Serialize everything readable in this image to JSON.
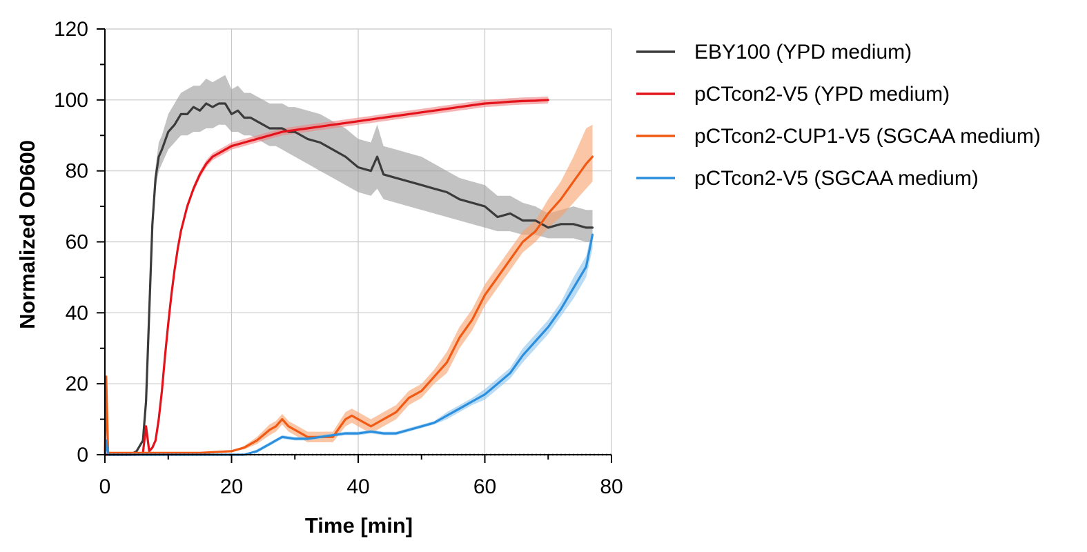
{
  "chart_data": {
    "type": "line",
    "title": "",
    "xlabel": "Time [min]",
    "ylabel": "Normalized OD600",
    "xlim": [
      0,
      80
    ],
    "ylim": [
      0,
      120
    ],
    "x_ticks": [
      "0",
      "20",
      "40",
      "60",
      "80"
    ],
    "y_ticks": [
      "0",
      "20",
      "40",
      "60",
      "80",
      "100",
      "120"
    ],
    "grid": true,
    "legend_position": "right",
    "series": [
      {
        "name": "EBY100 (YPD medium)",
        "color": "#3b3b3b",
        "band_color": "#9a9a9a",
        "x": [
          0,
          4,
          5,
          6,
          6.5,
          7,
          7.5,
          8,
          8.5,
          9,
          10,
          11,
          12,
          13,
          14,
          15,
          16,
          17,
          18,
          19,
          20,
          21,
          22,
          23,
          24,
          25,
          26,
          27,
          28,
          29,
          30,
          32,
          34,
          36,
          38,
          40,
          42,
          43,
          44,
          46,
          48,
          50,
          52,
          54,
          56,
          58,
          60,
          62,
          64,
          66,
          68,
          70,
          72,
          74,
          76,
          77
        ],
        "y": [
          0,
          0,
          1,
          4,
          15,
          40,
          65,
          78,
          84,
          86,
          91,
          93,
          96,
          96,
          98,
          97,
          99,
          98,
          99,
          99,
          96,
          97,
          95,
          95,
          94,
          93,
          92,
          92,
          92,
          91,
          91,
          89,
          88,
          86,
          84,
          81,
          80,
          84,
          79,
          78,
          77,
          76,
          75,
          74,
          72,
          71,
          70,
          67,
          68,
          66,
          66,
          64,
          65,
          65,
          64,
          64
        ],
        "lower": [
          0,
          0,
          1,
          4,
          15,
          38,
          62,
          75,
          80,
          82,
          86,
          88,
          90,
          90,
          91,
          91,
          92,
          92,
          93,
          93,
          91,
          91,
          90,
          90,
          89,
          88,
          87,
          87,
          86,
          85,
          84,
          82,
          80,
          78,
          76,
          74,
          73,
          75,
          72,
          71,
          70,
          69,
          68,
          67,
          66,
          65,
          64,
          63,
          63,
          62,
          62,
          61,
          61,
          61,
          60,
          60
        ],
        "upper": [
          0,
          0,
          1,
          4,
          15,
          42,
          68,
          81,
          88,
          90,
          96,
          99,
          102,
          103,
          104,
          104,
          106,
          105,
          106,
          107,
          103,
          104,
          102,
          102,
          101,
          100,
          99,
          99,
          99,
          98,
          98,
          97,
          96,
          94,
          92,
          89,
          88,
          93,
          87,
          86,
          85,
          84,
          82,
          80,
          78,
          77,
          76,
          73,
          73,
          71,
          70,
          68,
          69,
          70,
          69,
          69
        ]
      },
      {
        "name": "pCTcon2-V5 (YPD medium)",
        "color": "#e3121b",
        "band_color": "#f08080",
        "x": [
          0,
          5,
          6,
          6.5,
          7,
          7.5,
          8,
          8.5,
          9,
          9.5,
          10,
          10.5,
          11,
          11.5,
          12,
          13,
          14,
          15,
          16,
          17,
          18,
          19,
          20,
          22,
          24,
          26,
          28,
          30,
          32,
          34,
          36,
          38,
          40,
          42,
          44,
          46,
          48,
          50,
          52,
          54,
          56,
          58,
          60,
          62,
          64,
          66,
          68,
          70
        ],
        "y": [
          0,
          0,
          0.5,
          8,
          1,
          2,
          4,
          10,
          18,
          28,
          37,
          45,
          52,
          58,
          63,
          70,
          75,
          79,
          82,
          84,
          85,
          86,
          87,
          88,
          89,
          90,
          91,
          91.5,
          92,
          92.5,
          93,
          93.5,
          94,
          94.5,
          95,
          95.5,
          96,
          96.5,
          97,
          97.5,
          98,
          98.5,
          99,
          99.2,
          99.5,
          99.7,
          99.8,
          100
        ],
        "lower": [
          0,
          0,
          0.5,
          8,
          1,
          2,
          4,
          10,
          18,
          28,
          36,
          44,
          51,
          57,
          62,
          69,
          74,
          78,
          81,
          83,
          84,
          85,
          86,
          87,
          88,
          89,
          90,
          90.5,
          91,
          91.5,
          92,
          92.5,
          93,
          93.5,
          94,
          94.5,
          95,
          95.5,
          96,
          96.5,
          97,
          97.5,
          98,
          98.2,
          98.5,
          98.7,
          98.8,
          99
        ],
        "upper": [
          0,
          0,
          0.5,
          8,
          1,
          2,
          4,
          10,
          18,
          28,
          38,
          46,
          53,
          59,
          64,
          71,
          76,
          80,
          83,
          85,
          86,
          87,
          88,
          89,
          90,
          91,
          92,
          92.5,
          93,
          93.5,
          94,
          94.5,
          95,
          95.5,
          96,
          96.5,
          97,
          97.5,
          98,
          98.5,
          99,
          99.5,
          100,
          100.2,
          100.5,
          100.7,
          100.8,
          101
        ]
      },
      {
        "name": "pCTcon2-CUP1-V5 (SGCAA medium)",
        "color": "#f05a14",
        "band_color": "#f6a06a",
        "x": [
          0,
          0.2,
          0.5,
          5,
          10,
          15,
          20,
          22,
          24,
          26,
          27,
          28,
          29,
          30,
          32,
          34,
          36,
          38,
          39,
          40,
          42,
          44,
          46,
          48,
          50,
          52,
          54,
          56,
          58,
          60,
          62,
          64,
          66,
          68,
          70,
          72,
          74,
          76,
          77
        ],
        "y": [
          0,
          22,
          0.5,
          0.5,
          0.5,
          0.5,
          1,
          2,
          4,
          7,
          8,
          10,
          8,
          7,
          5,
          5,
          5,
          10,
          11,
          10,
          8,
          10,
          12,
          16,
          18,
          22,
          26,
          33,
          38,
          45,
          50,
          55,
          60,
          63,
          68,
          72,
          77,
          82,
          84
        ],
        "lower": [
          0,
          22,
          0.5,
          0.5,
          0.5,
          0.5,
          1,
          1.5,
          3,
          5.5,
          6.5,
          8.5,
          6.5,
          5.5,
          3.5,
          3.5,
          3.5,
          8,
          9,
          8,
          6,
          8,
          10,
          14,
          16,
          20,
          23,
          30,
          35,
          42,
          47,
          52,
          57,
          60,
          64,
          67,
          71,
          75,
          77
        ],
        "upper": [
          0,
          22,
          0.5,
          0.5,
          0.5,
          0.5,
          1,
          2.5,
          5,
          8.5,
          9.5,
          11.5,
          9.5,
          8.5,
          6.5,
          6.5,
          6.5,
          12,
          13,
          12,
          10,
          12,
          14,
          18,
          20,
          24,
          29,
          36,
          41,
          48,
          53,
          58,
          63,
          66,
          72,
          77,
          84,
          92,
          93
        ]
      },
      {
        "name": "pCTcon2-V5 (SGCAA medium)",
        "color": "#2b8fde",
        "band_color": "#8cc3ec",
        "x": [
          0,
          0.2,
          0.5,
          5,
          10,
          15,
          20,
          22,
          24,
          26,
          27,
          28,
          30,
          32,
          34,
          36,
          38,
          40,
          42,
          44,
          46,
          48,
          50,
          52,
          54,
          56,
          58,
          60,
          62,
          64,
          66,
          68,
          70,
          72,
          74,
          76,
          77
        ],
        "y": [
          0,
          4,
          0,
          0,
          0,
          0,
          0,
          0,
          1,
          3,
          4,
          5,
          4.5,
          4.5,
          5,
          5.5,
          6,
          6,
          6.5,
          6,
          6,
          7,
          8,
          9,
          11,
          13,
          15,
          17,
          20,
          23,
          28,
          32,
          36,
          41,
          47,
          53,
          62
        ],
        "lower": [
          0,
          4,
          0,
          0,
          0,
          0,
          0,
          0,
          0.5,
          2.5,
          3.5,
          4.5,
          4,
          4,
          4.5,
          5,
          5.5,
          5.5,
          6,
          5.5,
          5.5,
          6.5,
          7.5,
          8.5,
          10,
          12,
          14,
          15.5,
          18.5,
          21.5,
          26,
          30,
          34,
          39,
          44,
          50,
          58
        ],
        "upper": [
          0,
          4,
          0,
          0,
          0,
          0,
          0,
          0,
          1.5,
          3.5,
          4.5,
          5.5,
          5,
          5,
          5.5,
          6,
          6.5,
          6.5,
          7,
          6.5,
          6.5,
          7.5,
          8.5,
          9.5,
          12,
          14,
          16,
          18.5,
          21.5,
          24.5,
          30,
          34,
          38,
          43,
          50,
          56,
          64
        ]
      }
    ]
  }
}
